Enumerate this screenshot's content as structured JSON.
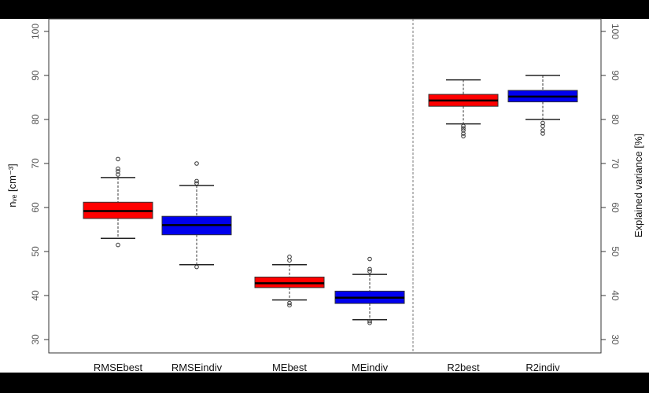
{
  "chart_data": {
    "type": "boxplot",
    "categories": [
      "RMSEbest",
      "RMSEindiv",
      "MEbest",
      "MEindiv",
      "R2best",
      "R2indiv"
    ],
    "ylabel_left": "nᵥₑ [cm⁻³]",
    "ylabel_right": "Explained variance [%]",
    "ylim": [
      27,
      105
    ],
    "ticks": [
      "30",
      "40",
      "50",
      "60",
      "70",
      "80",
      "90",
      "100"
    ],
    "series": [
      {
        "category": "RMSEbest",
        "color": "#ff0000",
        "min": 53,
        "q1": 57.5,
        "median": 59.2,
        "q3": 61.2,
        "max": 66.8,
        "outliers": [
          51.5,
          67.5,
          68.2,
          68.8,
          71
        ]
      },
      {
        "category": "RMSEindiv",
        "color": "#0000ee",
        "min": 47,
        "q1": 53.8,
        "median": 56,
        "q3": 58,
        "max": 65,
        "outliers": [
          46.5,
          65.5,
          66,
          70
        ]
      },
      {
        "category": "MEbest",
        "color": "#ff0000",
        "min": 39,
        "q1": 41.8,
        "median": 42.8,
        "q3": 44.2,
        "max": 47,
        "outliers": [
          37.8,
          38.3,
          48,
          48.8
        ]
      },
      {
        "category": "MEindiv",
        "color": "#0000ee",
        "min": 34.5,
        "q1": 38.2,
        "median": 39.5,
        "q3": 41,
        "max": 44.8,
        "outliers": [
          33.8,
          34.2,
          45.5,
          46,
          48.3
        ]
      },
      {
        "category": "R2best",
        "color": "#ff0000",
        "min": 79,
        "q1": 83,
        "median": 84.3,
        "q3": 85.7,
        "max": 89,
        "outliers": [
          76.2,
          76.8,
          77.5,
          78,
          78.5
        ]
      },
      {
        "category": "R2indiv",
        "color": "#0000ee",
        "min": 80,
        "q1": 84,
        "median": 85.2,
        "q3": 86.6,
        "max": 90,
        "outliers": [
          76.8,
          77.5,
          78.5,
          79.2
        ]
      }
    ]
  }
}
